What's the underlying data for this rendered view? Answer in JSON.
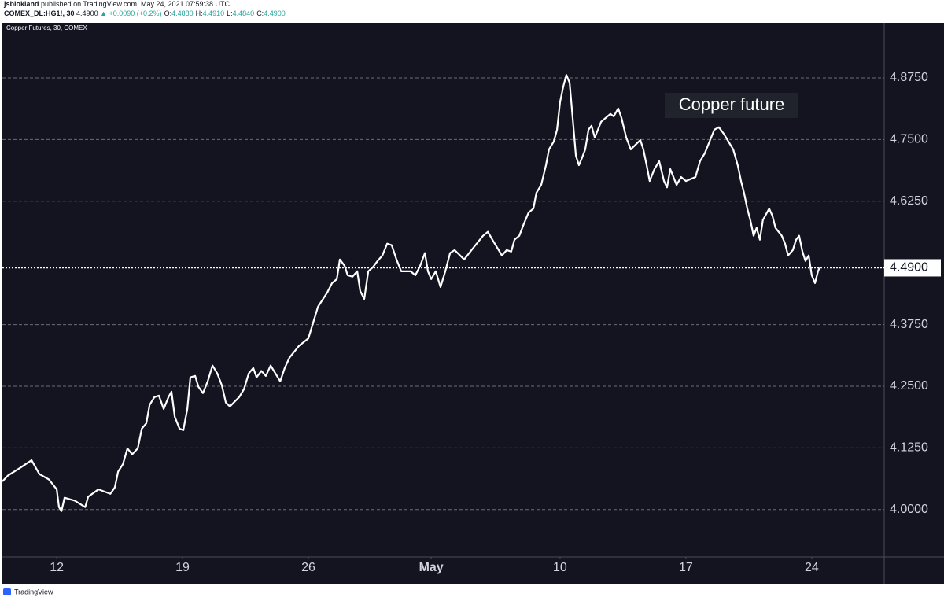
{
  "header": {
    "author": "jsblokland",
    "published": "published on TradingView.com, May 24, 2021 07:59:38 UTC",
    "symbol": "COMEX_DL:HG1!, 30",
    "price": "4.4900",
    "change": "▲ +0.0090 (+0.2%)",
    "ohlc": [
      {
        "label": "O:",
        "value": "4.4880"
      },
      {
        "label": "H:",
        "value": "4.4910"
      },
      {
        "label": "L:",
        "value": "4.4840"
      },
      {
        "label": "C:",
        "value": "4.4900"
      }
    ]
  },
  "footer": {
    "brand": "TradingView"
  },
  "chart_data": {
    "type": "line",
    "legend_text": "Copper Futures, 30, COMEX",
    "annotation": "Copper future",
    "color": "#ffffff",
    "grid": true,
    "xlim": [
      -2.16,
      32.88
    ],
    "ylim": [
      3.904,
      4.985
    ],
    "xticks": [
      {
        "value": 0,
        "label": "12"
      },
      {
        "value": 5,
        "label": "19"
      },
      {
        "value": 10,
        "label": "26"
      },
      {
        "value": 14.88,
        "label": "May"
      },
      {
        "value": 20,
        "label": "10"
      },
      {
        "value": 25,
        "label": "17"
      },
      {
        "value": 30,
        "label": "24"
      }
    ],
    "yticks": [
      {
        "value": 4,
        "label": "4.0000"
      },
      {
        "value": 4.125,
        "label": "4.1250"
      },
      {
        "value": 4.25,
        "label": "4.2500"
      },
      {
        "value": 4.375,
        "label": "4.3750"
      },
      {
        "value": 4.625,
        "label": "4.6250"
      },
      {
        "value": 4.75,
        "label": "4.7500"
      },
      {
        "value": 4.875,
        "label": "4.8750"
      }
    ],
    "last_price": {
      "value": 4.49,
      "label": "4.4900"
    },
    "x": [
      -2.16,
      -1.94,
      -1.47,
      -1.0,
      -0.69,
      -0.31,
      0,
      0.09,
      0.19,
      0.31,
      0.72,
      1.13,
      1.25,
      1.66,
      2.13,
      2.31,
      2.44,
      2.63,
      2.81,
      3.0,
      3.22,
      3.38,
      3.56,
      3.69,
      3.88,
      4.06,
      4.25,
      4.44,
      4.56,
      4.69,
      4.88,
      5.03,
      5.19,
      5.31,
      5.5,
      5.63,
      5.81,
      6.0,
      6.19,
      6.38,
      6.56,
      6.72,
      6.88,
      7.25,
      7.44,
      7.63,
      7.81,
      7.94,
      8.13,
      8.31,
      8.5,
      8.69,
      8.88,
      9.06,
      9.25,
      9.63,
      10.0,
      10.19,
      10.38,
      10.75,
      10.94,
      11.13,
      11.25,
      11.44,
      11.56,
      11.75,
      11.94,
      12.06,
      12.22,
      12.38,
      12.56,
      12.75,
      12.94,
      13.13,
      13.31,
      13.5,
      13.69,
      14.06,
      14.25,
      14.44,
      14.63,
      14.75,
      14.88,
      15.06,
      15.25,
      15.44,
      15.63,
      15.81,
      16.19,
      16.56,
      16.94,
      17.13,
      17.31,
      17.69,
      17.88,
      18.06,
      18.19,
      18.38,
      18.56,
      18.75,
      18.94,
      19.06,
      19.25,
      19.44,
      19.56,
      19.75,
      19.88,
      20.0,
      20.13,
      20.25,
      20.38,
      20.5,
      20.63,
      20.75,
      20.88,
      21.0,
      21.13,
      21.25,
      21.38,
      21.63,
      22.0,
      22.13,
      22.31,
      22.44,
      22.63,
      22.81,
      23.19,
      23.31,
      23.44,
      23.56,
      23.75,
      23.94,
      24.13,
      24.25,
      24.38,
      24.63,
      24.81,
      25.0,
      25.38,
      25.56,
      25.75,
      25.94,
      26.13,
      26.31,
      26.5,
      26.88,
      27.06,
      27.19,
      27.31,
      27.44,
      27.56,
      27.69,
      27.81,
      27.94,
      28.06,
      28.31,
      28.44,
      28.56,
      28.81,
      28.94,
      29.06,
      29.25,
      29.38,
      29.5,
      29.63,
      29.75,
      29.88,
      30.0,
      30.13,
      30.25,
      30.31
    ],
    "values": [
      4.057,
      4.069,
      4.084,
      4.1,
      4.072,
      4.061,
      4.041,
      4.005,
      3.997,
      4.024,
      4.018,
      4.005,
      4.026,
      4.041,
      4.032,
      4.045,
      4.077,
      4.092,
      4.124,
      4.112,
      4.124,
      4.164,
      4.175,
      4.212,
      4.228,
      4.231,
      4.204,
      4.228,
      4.239,
      4.188,
      4.164,
      4.161,
      4.204,
      4.268,
      4.271,
      4.249,
      4.236,
      4.26,
      4.292,
      4.276,
      4.252,
      4.217,
      4.209,
      4.228,
      4.244,
      4.276,
      4.287,
      4.268,
      4.281,
      4.271,
      4.292,
      4.276,
      4.26,
      4.287,
      4.308,
      4.332,
      4.347,
      4.379,
      4.411,
      4.44,
      4.459,
      4.467,
      4.507,
      4.494,
      4.475,
      4.472,
      4.483,
      4.443,
      4.427,
      4.483,
      4.491,
      4.504,
      4.515,
      4.539,
      4.536,
      4.507,
      4.483,
      4.483,
      4.475,
      4.494,
      4.52,
      4.483,
      4.467,
      4.483,
      4.451,
      4.483,
      4.52,
      4.526,
      4.507,
      4.531,
      4.555,
      4.563,
      4.547,
      4.515,
      4.526,
      4.523,
      4.547,
      4.555,
      4.579,
      4.602,
      4.61,
      4.642,
      4.658,
      4.698,
      4.73,
      4.746,
      4.77,
      4.826,
      4.858,
      4.881,
      4.865,
      4.794,
      4.717,
      4.698,
      4.714,
      4.73,
      4.77,
      4.778,
      4.754,
      4.786,
      4.802,
      4.797,
      4.813,
      4.794,
      4.754,
      4.73,
      4.749,
      4.73,
      4.698,
      4.666,
      4.69,
      4.706,
      4.666,
      4.653,
      4.69,
      4.658,
      4.674,
      4.666,
      4.674,
      4.706,
      4.722,
      4.746,
      4.77,
      4.775,
      4.762,
      4.73,
      4.698,
      4.666,
      4.642,
      4.61,
      4.587,
      4.555,
      4.571,
      4.547,
      4.587,
      4.61,
      4.595,
      4.571,
      4.555,
      4.539,
      4.515,
      4.526,
      4.547,
      4.555,
      4.523,
      4.504,
      4.515,
      4.475,
      4.459,
      4.483,
      4.49
    ]
  }
}
